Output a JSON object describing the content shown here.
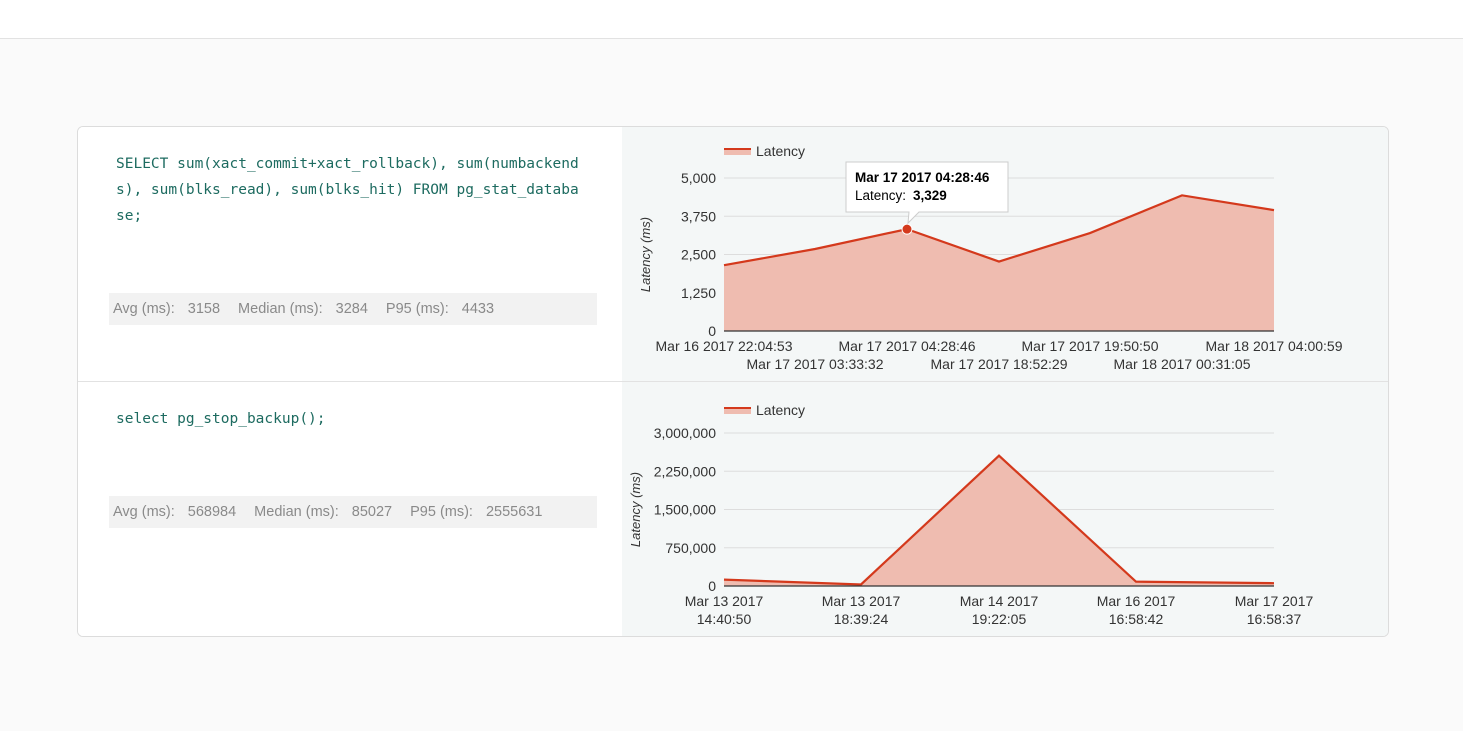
{
  "colors": {
    "line": "#d4391c",
    "fill": "#efbcb0",
    "grid": "#dddddd",
    "query_text": "#1d6b60",
    "stats_text": "#8a8a8a"
  },
  "queries": [
    {
      "sql": "SELECT sum(xact_commit+xact_rollback), sum(numbackends), sum(blks_read), sum(blks_hit) FROM pg_stat_database;",
      "stats": {
        "avg_label": "Avg (ms):",
        "avg_value": "3158",
        "median_label": "Median (ms):",
        "median_value": "3284",
        "p95_label": "P95 (ms):",
        "p95_value": "4433"
      },
      "tooltip": {
        "date": "Mar 17 2017 04:28:46",
        "series": "Latency:",
        "value": "3,329"
      }
    },
    {
      "sql": "select pg_stop_backup();",
      "stats": {
        "avg_label": "Avg (ms):",
        "avg_value": "568984",
        "median_label": "Median (ms):",
        "median_value": "85027",
        "p95_label": "P95 (ms):",
        "p95_value": "2555631"
      }
    }
  ],
  "chart_data": [
    {
      "type": "area",
      "legend": "Latency",
      "legend_position": "top-left",
      "ylabel": "Latency (ms)",
      "ylim": [
        0,
        5000
      ],
      "yticks": [
        "0",
        "1,250",
        "2,500",
        "3,750",
        "5,000"
      ],
      "grid": true,
      "x": [
        "Mar 16 2017 22:04:53",
        "Mar 17 2017 03:33:32",
        "Mar 17 2017 04:28:46",
        "Mar 17 2017 18:52:29",
        "Mar 17 2017 19:50:50",
        "Mar 18 2017 00:31:05",
        "Mar 18 2017 04:00:59"
      ],
      "series": [
        {
          "name": "Latency",
          "values": [
            2150,
            2680,
            3329,
            2270,
            3200,
            4433,
            3950
          ]
        }
      ],
      "highlight_index": 2
    },
    {
      "type": "area",
      "legend": "Latency",
      "legend_position": "top-left",
      "ylabel": "Latency (ms)",
      "ylim": [
        0,
        3000000
      ],
      "yticks": [
        "0",
        "750,000",
        "1,500,000",
        "2,250,000",
        "3,000,000"
      ],
      "grid": true,
      "x": [
        [
          "Mar 13 2017",
          "14:40:50"
        ],
        [
          "Mar 13 2017",
          "18:39:24"
        ],
        [
          "Mar 14 2017",
          "19:22:05"
        ],
        [
          "Mar 16 2017",
          "16:58:42"
        ],
        [
          "Mar 17 2017",
          "16:58:37"
        ]
      ],
      "series": [
        {
          "name": "Latency",
          "values": [
            125000,
            30000,
            2555631,
            85027,
            55000
          ]
        }
      ]
    }
  ]
}
